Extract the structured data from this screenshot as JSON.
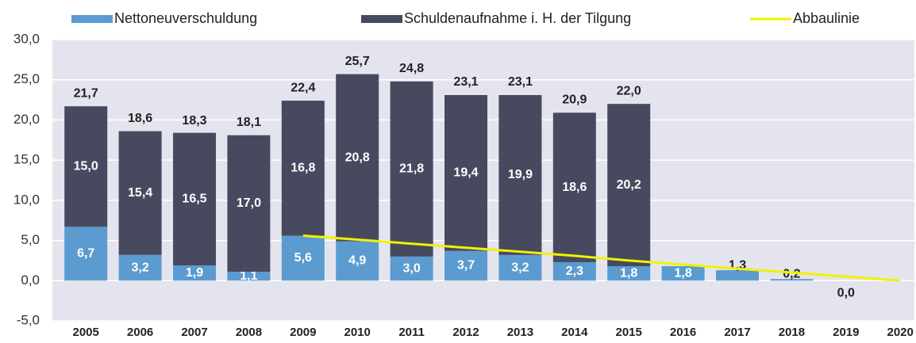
{
  "chart_data": {
    "type": "bar",
    "stacked": true,
    "categories": [
      "2005",
      "2006",
      "2007",
      "2008",
      "2009",
      "2010",
      "2011",
      "2012",
      "2013",
      "2014",
      "2015",
      "2016",
      "2017",
      "2018",
      "2019",
      "2020"
    ],
    "series": [
      {
        "name": "Nettoneuverschuldung",
        "color": "#5b9bd0",
        "values": [
          6.7,
          3.2,
          1.9,
          1.1,
          5.6,
          4.9,
          3.0,
          3.7,
          3.2,
          2.3,
          1.8,
          1.8,
          1.3,
          0.2,
          0.0,
          null
        ],
        "value_labels": [
          "6,7",
          "3,2",
          "1,9",
          "1,1",
          "5,6",
          "4,9",
          "3,0",
          "3,7",
          "3,2",
          "2,3",
          "1,8",
          "1,8",
          "1,3",
          "0,2",
          "0,0",
          null
        ]
      },
      {
        "name": "Schuldenaufnahme i. H. der Tilgung",
        "color": "#474a5e",
        "values": [
          15.0,
          15.4,
          16.5,
          17.0,
          16.8,
          20.8,
          21.8,
          19.4,
          19.9,
          18.6,
          20.2,
          null,
          null,
          null,
          null,
          null
        ],
        "value_labels": [
          "15,0",
          "15,4",
          "16,5",
          "17,0",
          "16,8",
          "20,8",
          "21,8",
          "19,4",
          "19,9",
          "18,6",
          "20,2",
          null,
          null,
          null,
          null,
          null
        ]
      },
      {
        "name": "Abbaulinie",
        "type": "line",
        "color": "#f2f200",
        "values": [
          null,
          null,
          null,
          null,
          5.6,
          5.1,
          4.6,
          4.1,
          3.6,
          3.1,
          2.5,
          2.0,
          1.5,
          1.0,
          0.5,
          0.0
        ]
      }
    ],
    "totals": [
      21.7,
      18.6,
      18.3,
      18.1,
      22.4,
      25.7,
      24.8,
      23.1,
      23.1,
      20.9,
      22.0
    ],
    "total_labels": [
      "21,7",
      "18,6",
      "18,3",
      "18,1",
      "22,4",
      "25,7",
      "24,8",
      "23,1",
      "23,1",
      "20,9",
      "22,0"
    ],
    "ylim": [
      -5,
      30
    ],
    "yticks": [
      {
        "value": -5,
        "label": "-5,0"
      },
      {
        "value": 0,
        "label": "0,0"
      },
      {
        "value": 5,
        "label": "5,0"
      },
      {
        "value": 10,
        "label": "10,0"
      },
      {
        "value": 15,
        "label": "15,0"
      },
      {
        "value": 20,
        "label": "20,0"
      },
      {
        "value": 25,
        "label": "25,0"
      },
      {
        "value": 30,
        "label": "30,0"
      }
    ],
    "grid": true,
    "legend": "top"
  }
}
